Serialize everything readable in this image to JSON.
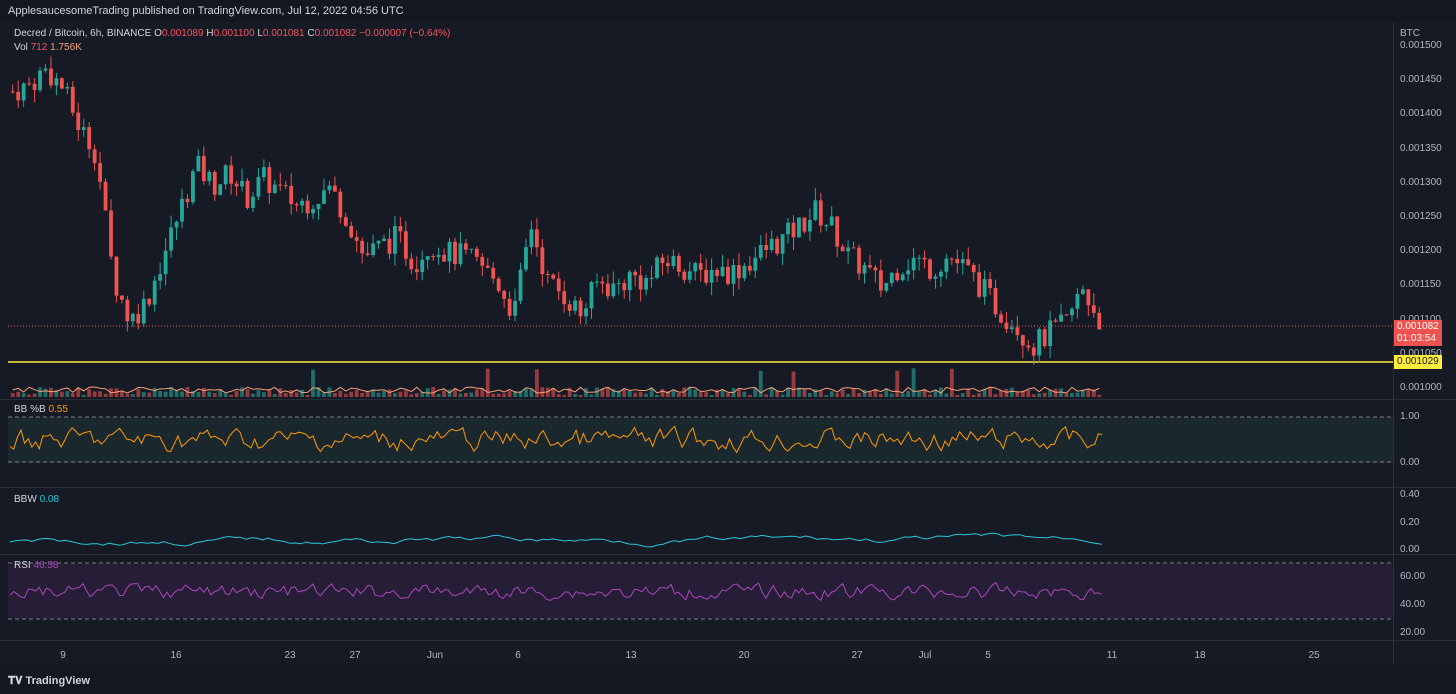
{
  "header": {
    "publisher": "ApplesaucesomeTrading published on TradingView.com, Jul 12, 2022 04:56 UTC"
  },
  "symbol": {
    "name": "Decred / Bitcoin, 6h, BINANCE",
    "o_label": "O",
    "o": "0.001089",
    "h_label": "H",
    "h": "0.001100",
    "l_label": "L",
    "l": "0.001081",
    "c_label": "C",
    "c": "0.001082",
    "change": "−0.000007 (−0.64%)"
  },
  "volume": {
    "label": "Vol",
    "value": "712",
    "avg": "1.756K"
  },
  "price_axis": {
    "currency": "BTC",
    "ticks": [
      "0.001500",
      "0.001450",
      "0.001400",
      "0.001350",
      "0.001300",
      "0.001250",
      "0.001200",
      "0.001150",
      "0.001100",
      "0.001050",
      "0.001000"
    ],
    "last_price": "0.001082",
    "countdown": "01:03:54",
    "support_level": "0.001029"
  },
  "indicators": {
    "bbp": {
      "label": "BB %B",
      "value": "0.55",
      "ticks": [
        "1.00",
        "0.00"
      ]
    },
    "bbw": {
      "label": "BBW",
      "value": "0.08",
      "ticks": [
        "0.40",
        "0.20",
        "0.00"
      ]
    },
    "rsi": {
      "label": "RSI",
      "value": "46.58",
      "ticks": [
        "60.00",
        "40.00",
        "20.00"
      ]
    }
  },
  "time_axis": [
    "9",
    "16",
    "23",
    "27",
    "Jun",
    "6",
    "13",
    "20",
    "27",
    "Jul",
    "5",
    "11",
    "18",
    "25"
  ],
  "footer": {
    "brand": "TradingView"
  },
  "colors": {
    "up": "#26a69a",
    "down": "#ef5350",
    "support": "#ffeb3b",
    "bbp": "#ff9800",
    "bbw": "#26c6da",
    "rsi": "#ab47bc"
  },
  "chart_data": {
    "type": "candlestick",
    "close_series": [
      0.001435,
      0.001445,
      0.00147,
      0.00144,
      0.00138,
      0.00134,
      0.00115,
      0.00108,
      0.00111,
      0.00118,
      0.00125,
      0.00132,
      0.00129,
      0.00131,
      0.00127,
      0.0013,
      0.00128,
      0.00126,
      0.00127,
      0.001285,
      0.00124,
      0.00118,
      0.001195,
      0.00121,
      0.00117,
      0.0012,
      0.001185,
      0.00118,
      0.001165,
      0.00114,
      0.00109,
      0.00123,
      0.00114,
      0.00112,
      0.00109,
      0.00114,
      0.00113,
      0.00115,
      0.00114,
      0.001175,
      0.001165,
      0.00115,
      0.00116,
      0.001155,
      0.00117,
      0.00119,
      0.001205,
      0.001225,
      0.00125,
      0.001225,
      0.00118,
      0.00116,
      0.00113,
      0.001165,
      0.001175,
      0.00116,
      0.00118,
      0.00116,
      0.00113,
      0.001095,
      0.001075,
      0.00104,
      0.00106,
      0.001075,
      0.00113,
      0.001082
    ]
  }
}
